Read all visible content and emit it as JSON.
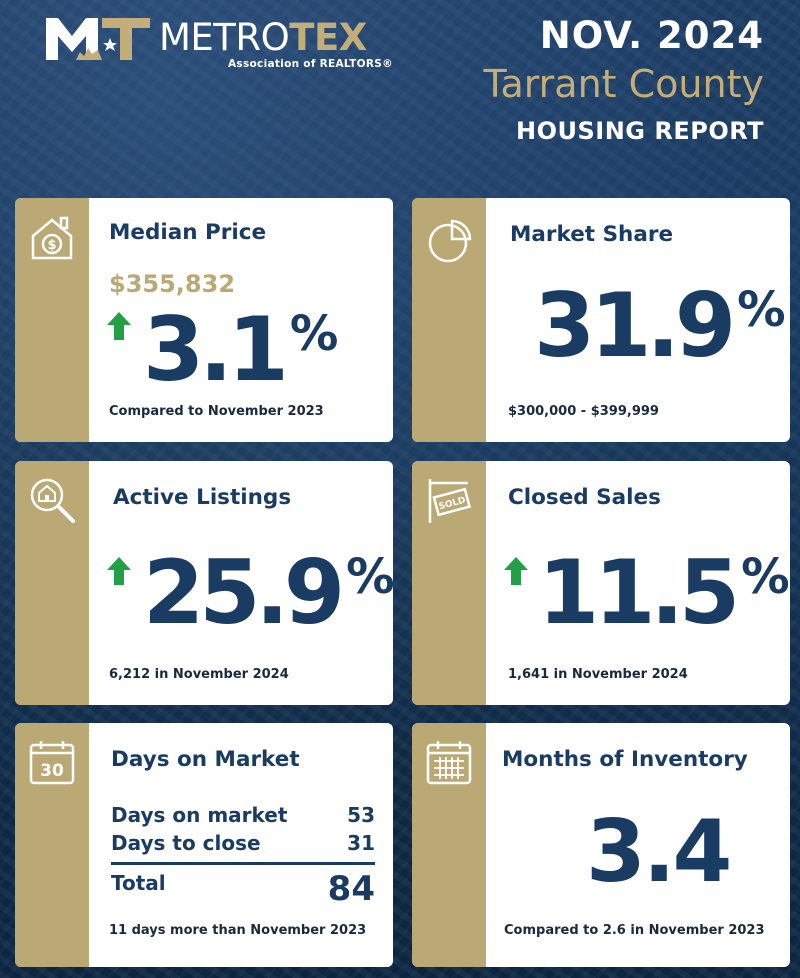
{
  "header": {
    "logo_main": "METRO",
    "logo_accent": "TEX",
    "logo_sub": "Association of REALTORS®",
    "date": "NOV. 2024",
    "county": "Tarrant County",
    "report": "HOUSING REPORT"
  },
  "median_price": {
    "title": "Median Price",
    "price": "$355,832",
    "change_value": "3.1",
    "change_unit": "%",
    "direction": "up",
    "footnote": "Compared to November 2023",
    "icon": "house-dollar-icon"
  },
  "market_share": {
    "title": "Market Share",
    "value": "31.9",
    "unit": "%",
    "footnote": "$300,000 - $399,999",
    "icon": "pie-chart-icon"
  },
  "active_listings": {
    "title": "Active Listings",
    "change_value": "25.9",
    "change_unit": "%",
    "direction": "up",
    "footnote": "6,212 in November 2024",
    "icon": "magnifier-house-icon"
  },
  "closed_sales": {
    "title": "Closed Sales",
    "change_value": "11.5",
    "change_unit": "%",
    "direction": "up",
    "footnote": "1,641 in November 2024",
    "icon": "sold-sign-icon"
  },
  "days_on_market": {
    "title": "Days on Market",
    "rows": [
      {
        "label": "Days on market",
        "value": "53"
      },
      {
        "label": "Days to close",
        "value": "31"
      }
    ],
    "total_label": "Total",
    "total_value": "84",
    "footnote": "11 days more than November 2023",
    "icon_label": "30",
    "icon": "calendar-30-icon"
  },
  "months_inventory": {
    "title": "Months of Inventory",
    "value": "3.4",
    "footnote": "Compared to 2.6 in November 2023",
    "icon": "calendar-grid-icon"
  },
  "colors": {
    "navy": "#1a3c63",
    "gold": "#bba975",
    "arrow_green": "#22a046"
  }
}
